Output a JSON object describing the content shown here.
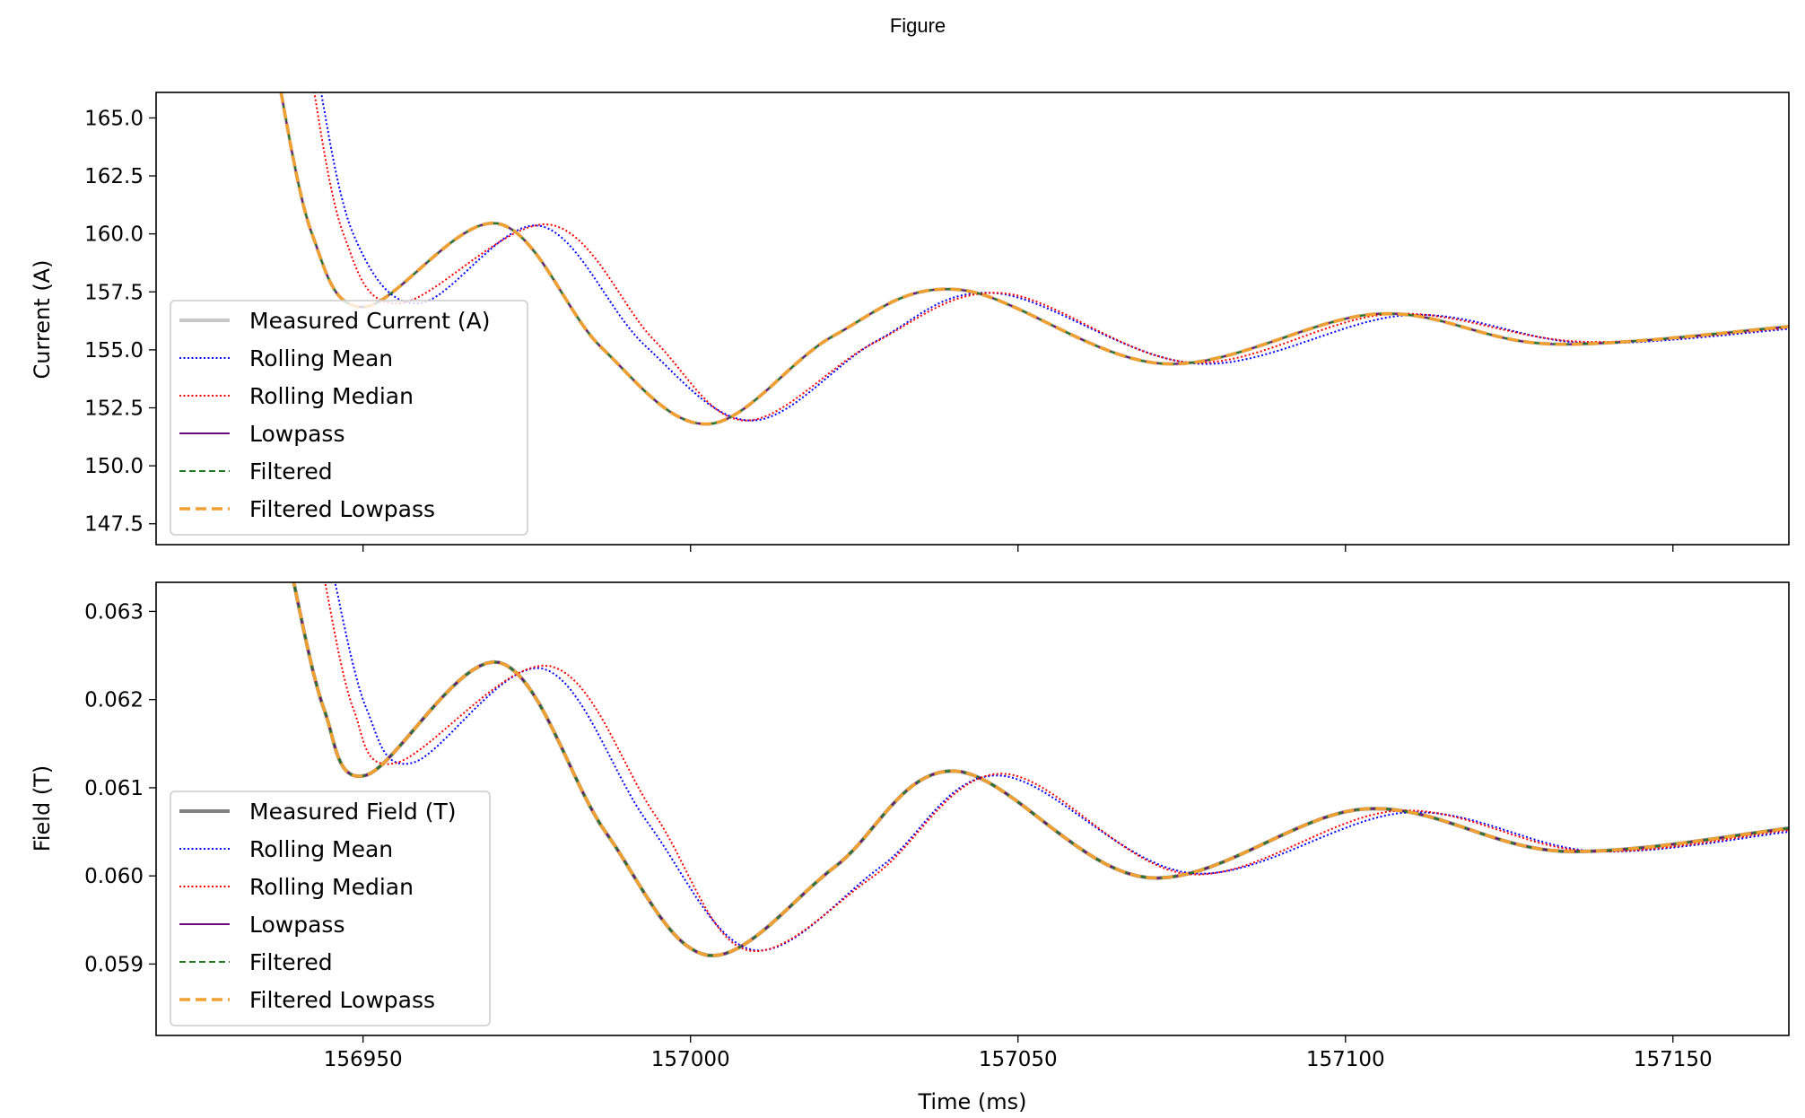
{
  "window_title": "Figure",
  "chart_data": [
    {
      "type": "line",
      "title": "",
      "xlabel": "",
      "ylabel": "Current (A)",
      "xlim": [
        156918.4,
        157167.7
      ],
      "ylim": [
        146.6,
        166.1
      ],
      "xticks": [
        156950,
        157000,
        157050,
        157100,
        157150
      ],
      "show_xticklabels": false,
      "yticks": [
        147.5,
        150.0,
        152.5,
        155.0,
        157.5,
        160.0,
        162.5,
        165.0
      ],
      "ytick_labels": [
        "147.5",
        "150.0",
        "152.5",
        "155.0",
        "157.5",
        "160.0",
        "162.5",
        "165.0"
      ],
      "legend_location": "lower-left",
      "series": [
        {
          "name": "Measured Current (A)",
          "color": "#c8c8c8",
          "style": "solid",
          "points": [
            [
              156937,
              166.8
            ],
            [
              156942.2,
              160
            ],
            [
              156950.2,
              156.85
            ],
            [
              156970.5,
              160.45
            ],
            [
              156986.4,
              155.1
            ],
            [
              157002.7,
              151.8
            ],
            [
              157021.8,
              155.6
            ],
            [
              157040.9,
              157.6
            ],
            [
              157072.2,
              154.4
            ],
            [
              157104.9,
              156.55
            ],
            [
              157131.4,
              155.25
            ],
            [
              157167.7,
              156.0
            ]
          ]
        },
        {
          "name": "Rolling Mean",
          "color": "#0000ff",
          "style": "dotted",
          "points": [
            [
              156943,
              167
            ],
            [
              156948.5,
              160
            ],
            [
              156958.5,
              157.0
            ],
            [
              156977,
              160.35
            ],
            [
              156993,
              155.2
            ],
            [
              157009.5,
              151.95
            ],
            [
              157028.5,
              155.4
            ],
            [
              157046.5,
              157.45
            ],
            [
              157077.5,
              154.4
            ],
            [
              157109.5,
              156.5
            ],
            [
              157136.5,
              155.3
            ],
            [
              157167.7,
              155.9
            ]
          ]
        },
        {
          "name": "Rolling Median",
          "color": "#ff0000",
          "style": "dotted",
          "points": [
            [
              156942,
              167
            ],
            [
              156947,
              160
            ],
            [
              156955.5,
              157.0
            ],
            [
              156978.5,
              160.4
            ],
            [
              156994.5,
              155.4
            ],
            [
              157008.5,
              151.95
            ],
            [
              157028,
              155.3
            ],
            [
              157047.5,
              157.45
            ],
            [
              157076.5,
              154.45
            ],
            [
              157107,
              156.55
            ],
            [
              157136,
              155.35
            ],
            [
              157167.7,
              155.95
            ]
          ]
        },
        {
          "name": "Lowpass",
          "color": "#6a0a7a",
          "style": "solid",
          "points": [
            [
              156937,
              166.8
            ],
            [
              156942.2,
              160
            ],
            [
              156950.2,
              156.85
            ],
            [
              156970.5,
              160.45
            ],
            [
              156986.4,
              155.1
            ],
            [
              157002.7,
              151.8
            ],
            [
              157021.8,
              155.6
            ],
            [
              157040.9,
              157.6
            ],
            [
              157072.2,
              154.4
            ],
            [
              157104.9,
              156.55
            ],
            [
              157131.4,
              155.25
            ],
            [
              157167.7,
              156.0
            ]
          ]
        },
        {
          "name": "Filtered",
          "color": "#217a21",
          "style": "dashed",
          "points": [
            [
              156937,
              166.8
            ],
            [
              156942.2,
              160
            ],
            [
              156950.2,
              156.85
            ],
            [
              156970.5,
              160.45
            ],
            [
              156986.4,
              155.1
            ],
            [
              157002.7,
              151.8
            ],
            [
              157021.8,
              155.6
            ],
            [
              157040.9,
              157.6
            ],
            [
              157072.2,
              154.4
            ],
            [
              157104.9,
              156.55
            ],
            [
              157131.4,
              155.25
            ],
            [
              157167.7,
              156.0
            ]
          ]
        },
        {
          "name": "Filtered Lowpass",
          "color": "#f0a030",
          "style": "dashed-thick",
          "points": [
            [
              156937,
              166.8
            ],
            [
              156942.2,
              160
            ],
            [
              156950.2,
              156.85
            ],
            [
              156970.5,
              160.45
            ],
            [
              156986.4,
              155.1
            ],
            [
              157002.7,
              151.8
            ],
            [
              157021.8,
              155.6
            ],
            [
              157040.9,
              157.6
            ],
            [
              157072.2,
              154.4
            ],
            [
              157104.9,
              156.55
            ],
            [
              157131.4,
              155.25
            ],
            [
              157167.7,
              156.0
            ]
          ]
        }
      ]
    },
    {
      "type": "line",
      "title": "",
      "xlabel": "Time (ms)",
      "ylabel": "Field (T)",
      "xlim": [
        156918.4,
        157167.7
      ],
      "ylim": [
        0.05819,
        0.06333
      ],
      "xticks": [
        156950,
        157000,
        157050,
        157100,
        157150
      ],
      "xtick_labels": [
        "156950",
        "157000",
        "157050",
        "157100",
        "157150"
      ],
      "yticks": [
        0.059,
        0.06,
        0.061,
        0.062,
        0.063
      ],
      "ytick_labels": [
        "0.059",
        "0.060",
        "0.061",
        "0.062",
        "0.063"
      ],
      "legend_location": "lower-left",
      "series": [
        {
          "name": "Measured Field (T)",
          "color": "#808080",
          "style": "solid",
          "points": [
            [
              156939.2,
              0.0634
            ],
            [
              156944,
              0.0619
            ],
            [
              156950.4,
              0.06114
            ],
            [
              156970.8,
              0.06242
            ],
            [
              156987,
              0.0605
            ],
            [
              157002.6,
              0.0591
            ],
            [
              157022,
              0.0601
            ],
            [
              157040.3,
              0.06119
            ],
            [
              157069.8,
              0.05998
            ],
            [
              157103,
              0.06076
            ],
            [
              157133,
              0.06028
            ],
            [
              157167.7,
              0.06054
            ]
          ]
        },
        {
          "name": "Rolling Mean",
          "color": "#0000ff",
          "style": "dotted",
          "points": [
            [
              156945.5,
              0.0634
            ],
            [
              156950.5,
              0.0619
            ],
            [
              156957.5,
              0.06128
            ],
            [
              156977.5,
              0.06235
            ],
            [
              156993.5,
              0.0606
            ],
            [
              157009.5,
              0.05916
            ],
            [
              157029,
              0.0601
            ],
            [
              157047,
              0.06114
            ],
            [
              157076.5,
              0.06003
            ],
            [
              157109.5,
              0.06072
            ],
            [
              157138,
              0.06028
            ],
            [
              157167.7,
              0.0605
            ]
          ]
        },
        {
          "name": "Rolling Median",
          "color": "#ff0000",
          "style": "dotted",
          "points": [
            [
              156944,
              0.0634
            ],
            [
              156948.5,
              0.0619
            ],
            [
              156955,
              0.06128
            ],
            [
              156978.5,
              0.06238
            ],
            [
              156994.5,
              0.0607
            ],
            [
              157008.5,
              0.05916
            ],
            [
              157028,
              0.06
            ],
            [
              157047.5,
              0.06116
            ],
            [
              157076,
              0.06002
            ],
            [
              157108,
              0.06074
            ],
            [
              157137,
              0.06028
            ],
            [
              157167.7,
              0.06052
            ]
          ]
        },
        {
          "name": "Lowpass",
          "color": "#6a0a7a",
          "style": "solid",
          "points": [
            [
              156939.2,
              0.0634
            ],
            [
              156944,
              0.0619
            ],
            [
              156950.4,
              0.06114
            ],
            [
              156970.8,
              0.06242
            ],
            [
              156987,
              0.0605
            ],
            [
              157002.6,
              0.0591
            ],
            [
              157022,
              0.0601
            ],
            [
              157040.3,
              0.06119
            ],
            [
              157069.8,
              0.05998
            ],
            [
              157103,
              0.06076
            ],
            [
              157133,
              0.06028
            ],
            [
              157167.7,
              0.06054
            ]
          ]
        },
        {
          "name": "Filtered",
          "color": "#217a21",
          "style": "dashed",
          "points": [
            [
              156939.2,
              0.0634
            ],
            [
              156944,
              0.0619
            ],
            [
              156950.4,
              0.06114
            ],
            [
              156970.8,
              0.06242
            ],
            [
              156987,
              0.0605
            ],
            [
              157002.6,
              0.0591
            ],
            [
              157022,
              0.0601
            ],
            [
              157040.3,
              0.06119
            ],
            [
              157069.8,
              0.05998
            ],
            [
              157103,
              0.06076
            ],
            [
              157133,
              0.06028
            ],
            [
              157167.7,
              0.06054
            ]
          ]
        },
        {
          "name": "Filtered Lowpass",
          "color": "#f0a030",
          "style": "dashed-thick",
          "points": [
            [
              156939.2,
              0.0634
            ],
            [
              156944,
              0.0619
            ],
            [
              156950.4,
              0.06114
            ],
            [
              156970.8,
              0.06242
            ],
            [
              156987,
              0.0605
            ],
            [
              157002.6,
              0.0591
            ],
            [
              157022,
              0.0601
            ],
            [
              157040.3,
              0.06119
            ],
            [
              157069.8,
              0.05998
            ],
            [
              157103,
              0.06076
            ],
            [
              157133,
              0.06028
            ],
            [
              157167.7,
              0.06054
            ]
          ]
        }
      ]
    }
  ]
}
